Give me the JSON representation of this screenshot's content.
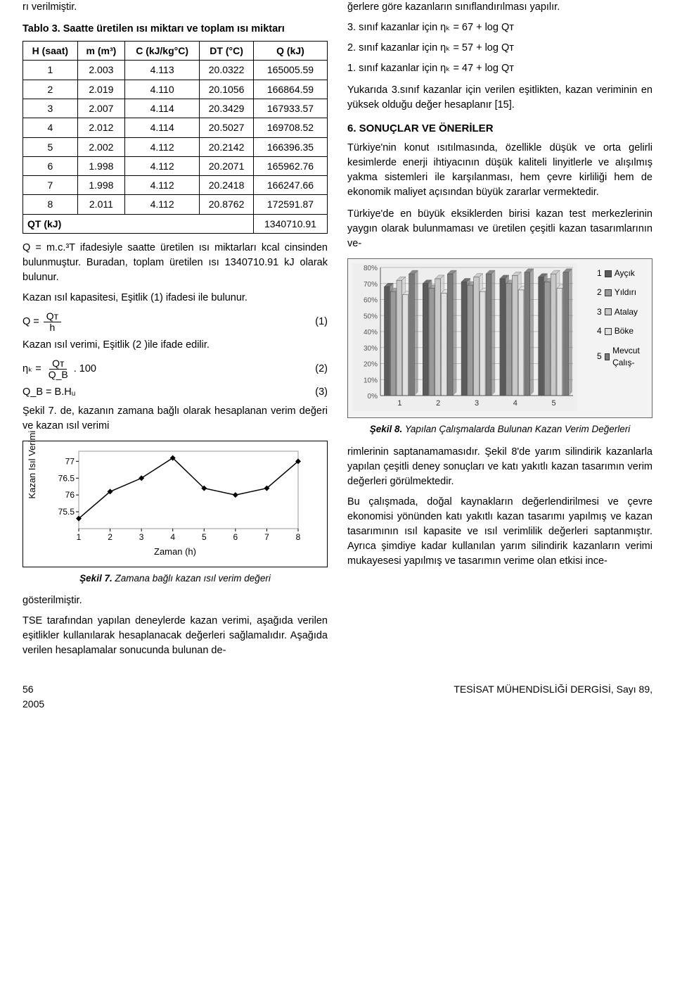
{
  "left": {
    "intro": "rı verilmiştir.",
    "table_title": "Tablo 3. Saatte üretilen ısı miktarı ve toplam ısı miktarı",
    "table": {
      "columns": [
        "H (saat)",
        "m (m³)",
        "C (kJ/kg°C)",
        "DT (°C)",
        "Q (kJ)"
      ],
      "rows": [
        [
          "1",
          "2.003",
          "4.113",
          "20.0322",
          "165005.59"
        ],
        [
          "2",
          "2.019",
          "4.110",
          "20.1056",
          "166864.59"
        ],
        [
          "3",
          "2.007",
          "4.114",
          "20.3429",
          "167933.57"
        ],
        [
          "4",
          "2.012",
          "4.114",
          "20.5027",
          "169708.52"
        ],
        [
          "5",
          "2.002",
          "4.112",
          "20.2142",
          "166396.35"
        ],
        [
          "6",
          "1.998",
          "4.112",
          "20.2071",
          "165962.76"
        ],
        [
          "7",
          "1.998",
          "4.112",
          "20.2418",
          "166247.66"
        ],
        [
          "8",
          "2.011",
          "4.112",
          "20.8762",
          "172591.87"
        ]
      ],
      "qt_label": "QT (kJ)",
      "qt_value": "1340710.91"
    },
    "para_q": "Q = m.c.³T ifadesiyle saatte üretilen ısı miktarları kcal cinsinden bulunmuştur. Buradan, toplam üretilen ısı 1340710.91 kJ olarak bulunur.",
    "para_kap": "Kazan ısıl kapasitesi, Eşitlik (1) ifadesi ile bulunur.",
    "eq1": {
      "lhs_a": "Q =",
      "num": "Qᴛ",
      "den": "h",
      "label": "(1)"
    },
    "para_ver": "Kazan ısıl verimi, Eşitlik (2 )ile ifade edilir.",
    "eq2": {
      "lhs_a": "ηₖ =",
      "num": "Qᴛ",
      "den": "Q_B",
      "tail": ". 100",
      "label": "(2)"
    },
    "eq3": {
      "text": "Q_B = B.Hᵤ",
      "label": "(3)"
    },
    "para_s7a": "Şekil 7. de, kazanın zamana bağlı olarak hesaplanan verim değeri ve kazan ısıl verimi",
    "chart7": {
      "type": "line",
      "ylabel": "Kazan Isıl Verimi",
      "xlabel": "Zaman (h)",
      "x": [
        1,
        2,
        3,
        4,
        5,
        6,
        7,
        8
      ],
      "y": [
        75.3,
        76.1,
        76.5,
        77.1,
        76.2,
        76.0,
        76.2,
        77.0
      ],
      "yticks": [
        75.5,
        76,
        76.5,
        77
      ],
      "ylim": [
        75,
        77.3
      ],
      "line_color": "#000000",
      "marker": "diamond",
      "marker_fill": "#000000",
      "background": "#ffffff",
      "grid": false
    },
    "fig7_caption_bold": "Şekil 7.",
    "fig7_caption_rest": " Zamana bağlı kazan ısıl verim değeri",
    "para_s7b": "gösterilmiştir.",
    "para_tse": "TSE tarafından yapılan deneylerde kazan verimi, aşağıda verilen eşitlikler kullanılarak hesaplanacak değerleri sağlamalıdır. Aşağıda verilen hesaplamalar sonucunda bulunan de-"
  },
  "right": {
    "para_top": "ğerlere göre kazanların sınıflandırılması yapılır.",
    "class_lines": [
      "3. sınıf kazanlar için ηₖ = 67 + log Qᴛ",
      "2. sınıf kazanlar için ηₖ = 57 + log Qᴛ",
      "1. sınıf kazanlar için ηₖ = 47 + log Qᴛ"
    ],
    "para_yuk": "Yukarıda 3.sınıf kazanlar için verilen eşitlikten, kazan veriminin en yüksek olduğu değer hesaplanır [15].",
    "section6": "6. SONUÇLAR VE ÖNERİLER",
    "para6a": "Türkiye'nin konut ısıtılmasında, özellikle düşük ve orta gelirli kesimlerde enerji ihtiyacının düşük kaliteli linyitlerle ve alışılmış yakma sistemleri ile karşılanması, hem çevre kirliliği hem de ekonomik maliyet açısından büyük zararlar vermektedir.",
    "para6b": "Türkiye'de en büyük eksiklerden birisi kazan test merkezlerinin yaygın olarak bulunmaması ve üretilen çeşitli kazan tasarımlarının ve-",
    "chart8": {
      "type": "bar",
      "categories": [
        "1",
        "2",
        "3",
        "4",
        "5"
      ],
      "series_labels": [
        "Ayçık",
        "Yıldırı",
        "Atalay",
        "Böke",
        "Mevcut Çalış-"
      ],
      "series_colors": [
        "#5b5b5b",
        "#9a9a9a",
        "#c8c8c8",
        "#e0e0e0",
        "#7a7a7a"
      ],
      "values": [
        [
          68,
          65,
          72,
          63,
          76
        ],
        [
          70,
          67,
          73,
          64,
          76
        ],
        [
          71,
          69,
          74,
          65,
          76
        ],
        [
          73,
          70,
          75,
          66,
          77
        ],
        [
          74,
          71,
          76,
          67,
          77
        ]
      ],
      "yticks_labels": [
        "0%",
        "10%",
        "20%",
        "30%",
        "40%",
        "50%",
        "60%",
        "70%",
        "80%"
      ],
      "ylim": [
        0,
        80
      ],
      "background": "#eeeeee",
      "grid_color": "#bdbdbd"
    },
    "fig8_caption_bold": "Şekil 8.",
    "fig8_caption_rest": " Yapılan Çalışmalarda Bulunan Kazan Verim Değerleri",
    "para6c": "rimlerinin saptanamamasıdır. Şekil 8'de yarım silindirik kazanlarla yapılan çeşitli deney sonuçları ve katı yakıtlı kazan tasarımın verim değerleri görülmektedir.",
    "para6d": "Bu çalışmada, doğal kaynakların değerlendirilmesi ve çevre ekonomisi yönünden katı yakıtlı kazan tasarımı yapılmış ve kazan tasarımının ısıl kapasite ve ısıl verimlilik değerleri saptanmıştır. Ayrıca şimdiye kadar kullanılan yarım silindirik kazanların verimi mukayesesi yapılmış ve tasarımın verime olan etkisi ince-"
  },
  "footer": {
    "page": "56",
    "journal": "TESİSAT MÜHENDİSLİĞİ DERGİSİ, Sayı 89,",
    "year": "2005"
  }
}
